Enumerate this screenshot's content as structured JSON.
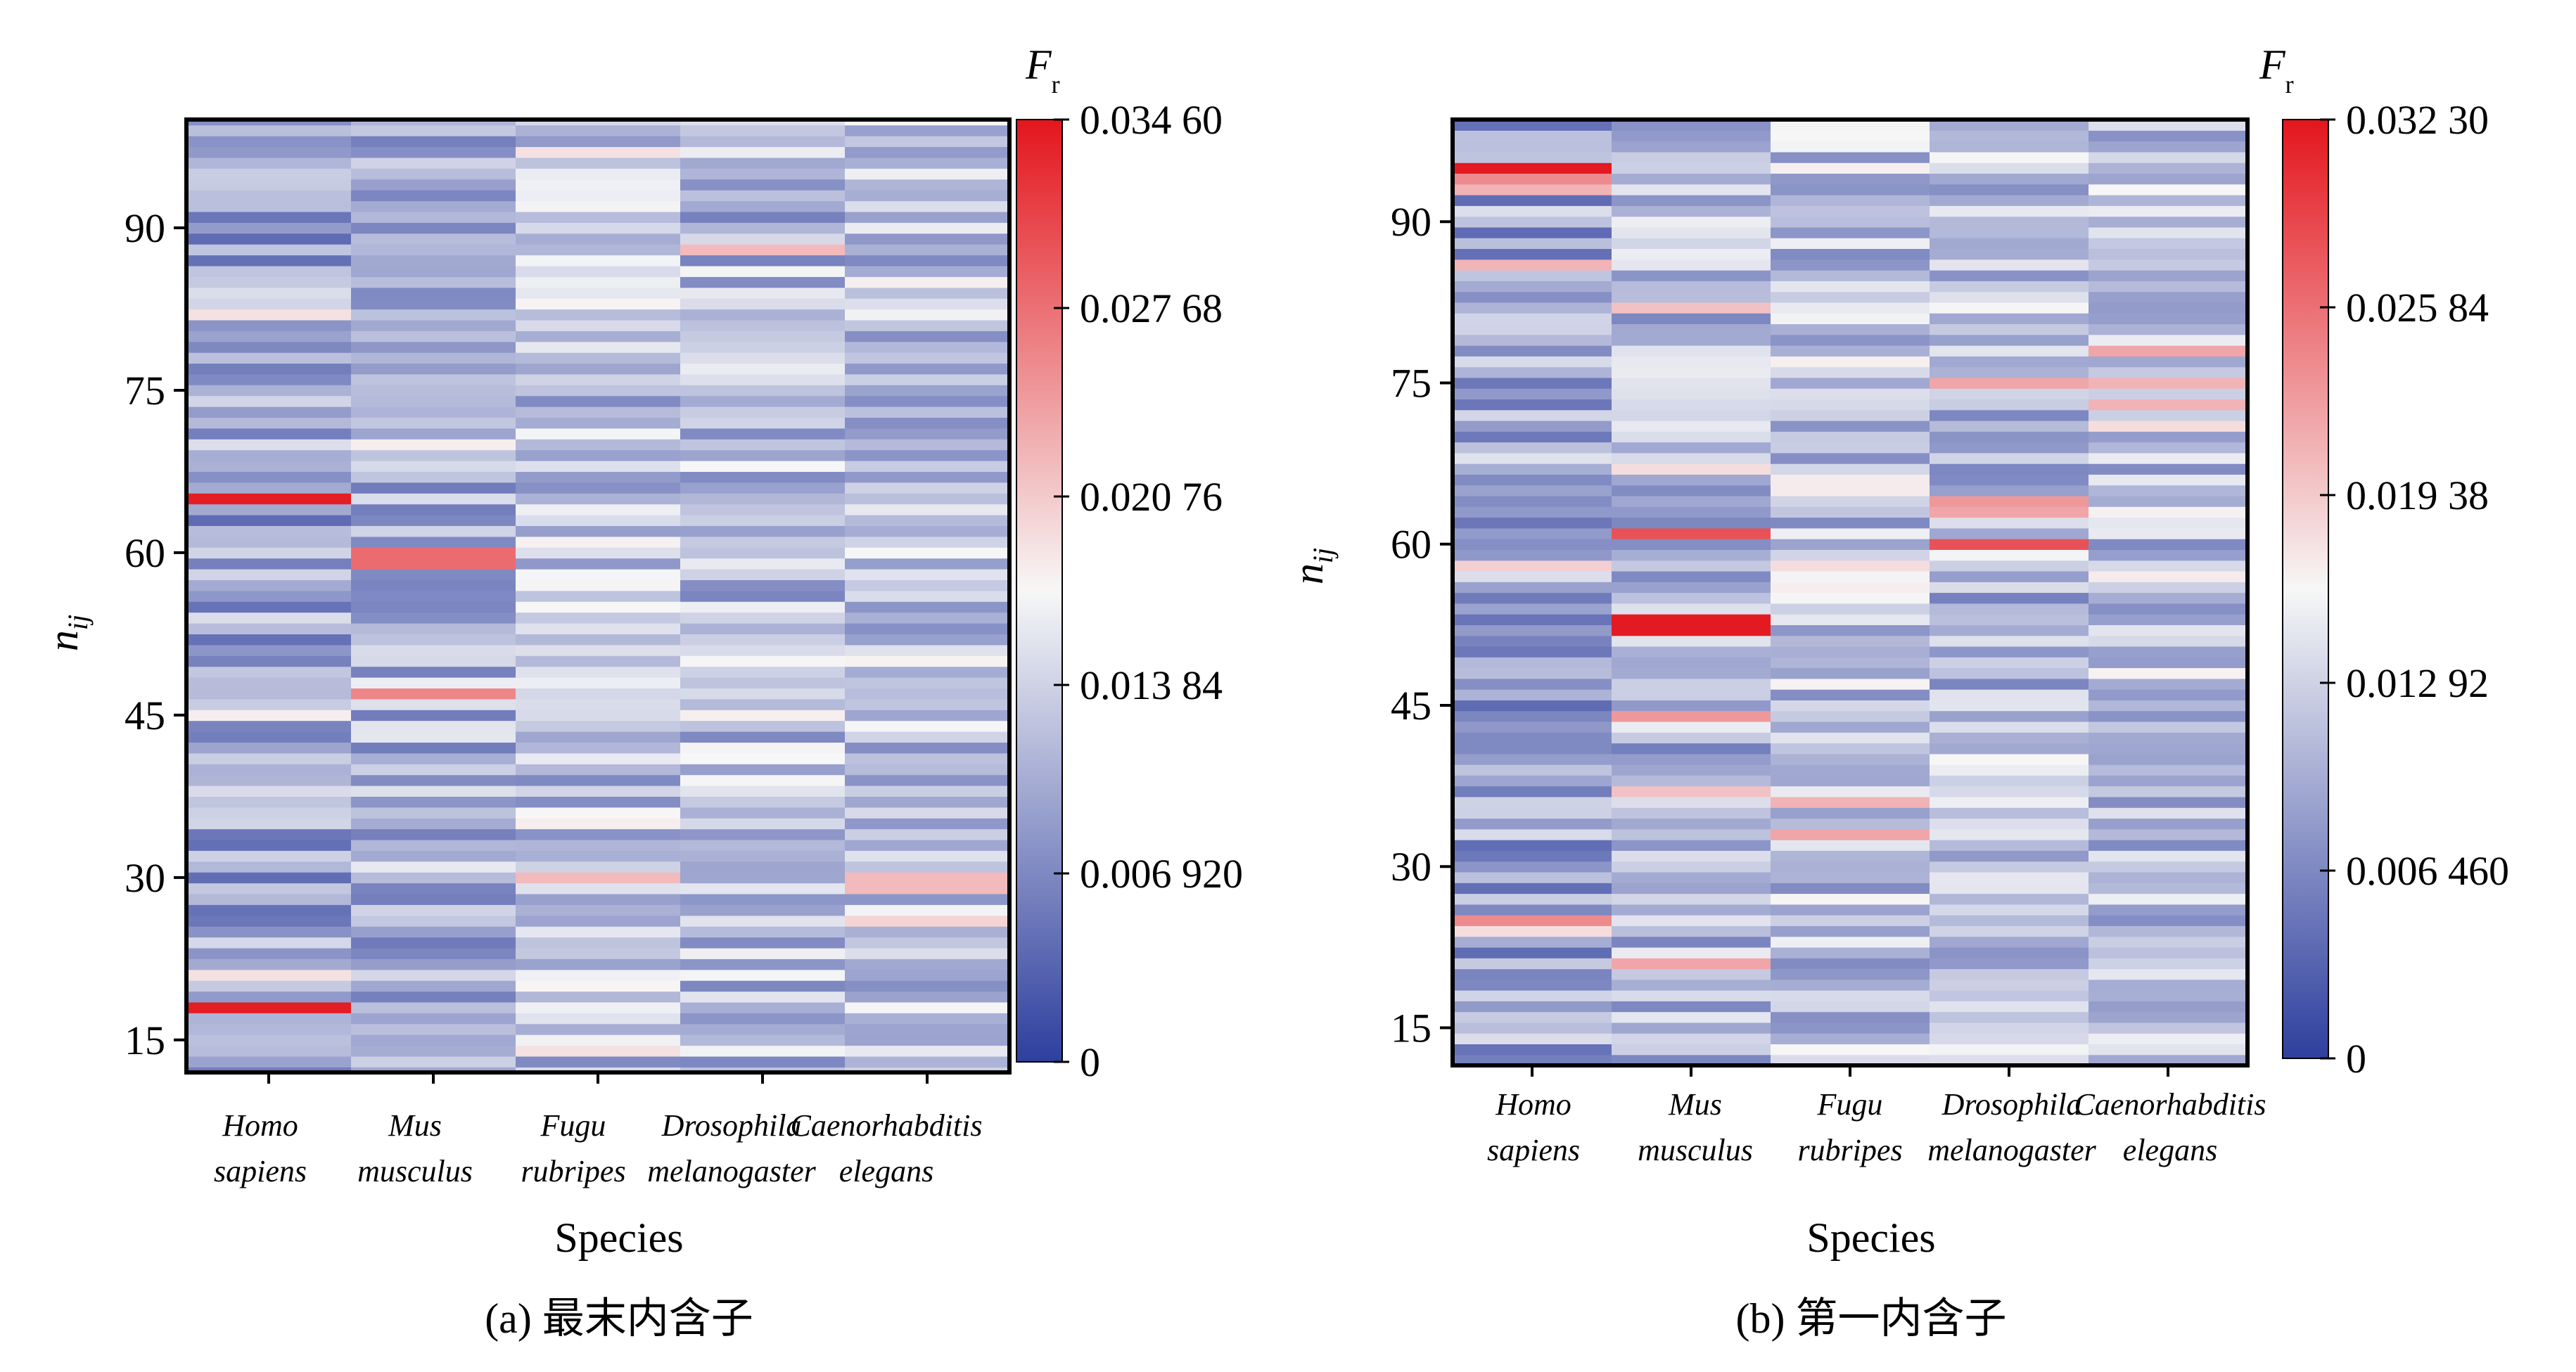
{
  "colors": {
    "low": "#2e3f9e",
    "mid": "#f7f7f7",
    "high": "#e3161d"
  },
  "chart_data": [
    {
      "type": "heatmap",
      "caption": "(a) 最末内含子",
      "xlabel": "Species",
      "ylabel_main": "n",
      "ylabel_sub": "ij",
      "categories": [
        {
          "line1": "Homo",
          "line2": "sapiens"
        },
        {
          "line1": "Mus",
          "line2": "musculus"
        },
        {
          "line1": "Fugu",
          "line2": "rubripes"
        },
        {
          "line1": "Drosophila",
          "line2": "melanogaster"
        },
        {
          "line1": "Caenorhabditis",
          "line2": "elegans"
        }
      ],
      "ylim": [
        12,
        100
      ],
      "y_ticks": [
        15,
        30,
        45,
        60,
        75,
        90
      ],
      "colorbar": {
        "label_main": "F",
        "label_sub": "r",
        "min": 0,
        "max": 0.0346,
        "tick_values": [
          0,
          0.00692,
          0.01384,
          0.02076,
          0.02768,
          0.0346
        ],
        "tick_labels": [
          "0",
          "0.006 920",
          "0.013 84",
          "0.020 76",
          "0.027 68",
          "0.034 60"
        ]
      },
      "highlights": [
        {
          "species": 0,
          "n": 18,
          "value": 0.034
        },
        {
          "species": 0,
          "n": 65,
          "value": 0.034
        },
        {
          "species": 0,
          "n": 21,
          "value": 0.019
        },
        {
          "species": 0,
          "n": 82,
          "value": 0.019
        },
        {
          "species": 0,
          "n": 45,
          "value": 0.018
        },
        {
          "species": 0,
          "n": 58,
          "value": 0.014
        },
        {
          "species": 1,
          "n": 59,
          "value": 0.028
        },
        {
          "species": 1,
          "n": 60,
          "value": 0.028
        },
        {
          "species": 1,
          "n": 47,
          "value": 0.026
        },
        {
          "species": 1,
          "n": 70,
          "value": 0.018
        },
        {
          "species": 1,
          "n": 31,
          "value": 0.016
        },
        {
          "species": 2,
          "n": 30,
          "value": 0.022
        },
        {
          "species": 2,
          "n": 14,
          "value": 0.019
        },
        {
          "species": 2,
          "n": 35,
          "value": 0.018
        },
        {
          "species": 2,
          "n": 97,
          "value": 0.019
        },
        {
          "species": 2,
          "n": 57,
          "value": 0.017
        },
        {
          "species": 3,
          "n": 88,
          "value": 0.022
        },
        {
          "species": 3,
          "n": 86,
          "value": 0.017
        },
        {
          "species": 3,
          "n": 45,
          "value": 0.018
        },
        {
          "species": 3,
          "n": 42,
          "value": 0.017
        },
        {
          "species": 3,
          "n": 72,
          "value": 0.014
        },
        {
          "species": 4,
          "n": 29,
          "value": 0.022
        },
        {
          "species": 4,
          "n": 30,
          "value": 0.022
        },
        {
          "species": 4,
          "n": 26,
          "value": 0.02
        },
        {
          "species": 4,
          "n": 85,
          "value": 0.018
        },
        {
          "species": 4,
          "n": 23,
          "value": 0.015
        }
      ]
    },
    {
      "type": "heatmap",
      "caption": "(b) 第一内含子",
      "xlabel": "Species",
      "ylabel_main": "n",
      "ylabel_sub": "ij",
      "categories": [
        {
          "line1": "Homo",
          "line2": "sapiens"
        },
        {
          "line1": "Mus",
          "line2": "musculus"
        },
        {
          "line1": "Fugu",
          "line2": "rubripes"
        },
        {
          "line1": "Drosophila",
          "line2": "melanogaster"
        },
        {
          "line1": "Caenorhabditis",
          "line2": "elegans"
        }
      ],
      "ylim": [
        11.5,
        99.5
      ],
      "y_ticks": [
        15,
        30,
        45,
        60,
        75,
        90
      ],
      "colorbar": {
        "label_main": "F",
        "label_sub": "r",
        "min": 0,
        "max": 0.0323,
        "tick_values": [
          0,
          0.00646,
          0.01292,
          0.01938,
          0.02584,
          0.0323
        ],
        "tick_labels": [
          "0",
          "0.006 460",
          "0.012 92",
          "0.019 38",
          "0.025 84",
          "0.032 30"
        ]
      },
      "highlights": [
        {
          "species": 0,
          "n": 95,
          "value": 0.032
        },
        {
          "species": 0,
          "n": 94,
          "value": 0.024
        },
        {
          "species": 0,
          "n": 93,
          "value": 0.021
        },
        {
          "species": 0,
          "n": 86,
          "value": 0.021
        },
        {
          "species": 0,
          "n": 58,
          "value": 0.019
        },
        {
          "species": 0,
          "n": 25,
          "value": 0.024
        },
        {
          "species": 0,
          "n": 24,
          "value": 0.018
        },
        {
          "species": 1,
          "n": 53,
          "value": 0.032
        },
        {
          "species": 1,
          "n": 52,
          "value": 0.032
        },
        {
          "species": 1,
          "n": 61,
          "value": 0.028
        },
        {
          "species": 1,
          "n": 44,
          "value": 0.023
        },
        {
          "species": 1,
          "n": 21,
          "value": 0.022
        },
        {
          "species": 1,
          "n": 82,
          "value": 0.02
        },
        {
          "species": 1,
          "n": 37,
          "value": 0.02
        },
        {
          "species": 1,
          "n": 67,
          "value": 0.018
        },
        {
          "species": 2,
          "n": 66,
          "value": 0.017
        },
        {
          "species": 2,
          "n": 65,
          "value": 0.017
        },
        {
          "species": 2,
          "n": 36,
          "value": 0.021
        },
        {
          "species": 2,
          "n": 33,
          "value": 0.022
        },
        {
          "species": 2,
          "n": 58,
          "value": 0.018
        },
        {
          "species": 3,
          "n": 64,
          "value": 0.023
        },
        {
          "species": 3,
          "n": 63,
          "value": 0.022
        },
        {
          "species": 3,
          "n": 60,
          "value": 0.028
        },
        {
          "species": 3,
          "n": 75,
          "value": 0.022
        },
        {
          "species": 4,
          "n": 78,
          "value": 0.022
        },
        {
          "species": 4,
          "n": 75,
          "value": 0.021
        },
        {
          "species": 4,
          "n": 73,
          "value": 0.021
        },
        {
          "species": 4,
          "n": 71,
          "value": 0.018
        },
        {
          "species": 4,
          "n": 57,
          "value": 0.017
        }
      ]
    }
  ]
}
